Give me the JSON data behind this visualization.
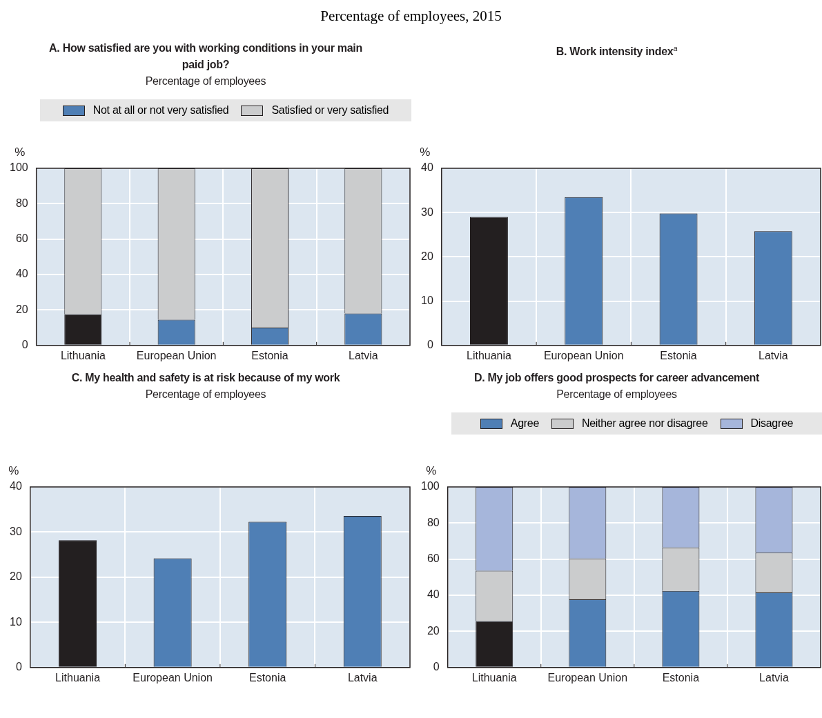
{
  "chart_data": [
    {
      "type": "other",
      "title": "Percentage of employees, 2015"
    },
    {
      "type": "bar",
      "title": "A. How satisfied are you with working conditions in your main paid job?",
      "subtitle": "Percentage of employees",
      "ylabel": "%",
      "categories": [
        "Lithuania",
        "European Union",
        "Estonia",
        "Latvia"
      ],
      "stacked": true,
      "legend": "top",
      "grid": true,
      "ylim": [
        0,
        100
      ],
      "yticks": [
        0,
        20,
        40,
        60,
        80,
        100
      ],
      "series": [
        {
          "name": "Not at all or not very satisfied",
          "color": "#4f7fb5",
          "colors": [
            "#231f20",
            "#4f7fb5",
            "#4f7fb5",
            "#4f7fb5"
          ],
          "values": [
            17.5,
            14.5,
            10,
            18
          ]
        },
        {
          "name": "Satisfied or very satisfied",
          "color": "#cbcccd",
          "values": [
            82.5,
            85.5,
            90,
            82
          ]
        }
      ]
    },
    {
      "type": "bar",
      "title": "B. Work intensity index$^{a}$",
      "ylabel": "%",
      "categories": [
        "Lithuania",
        "European Union",
        "Estonia",
        "Latvia"
      ],
      "grid": true,
      "ylim": [
        0,
        40
      ],
      "yticks": [
        0,
        10,
        20,
        30,
        40
      ],
      "series": [
        {
          "colors": [
            "#231f20",
            "#4f7fb5",
            "#4f7fb5",
            "#4f7fb5"
          ],
          "values": [
            29,
            33.5,
            29.8,
            25.8
          ]
        }
      ]
    },
    {
      "type": "bar",
      "title": "C. My health and safety is at risk because of my work",
      "subtitle": "Percentage of employees",
      "ylabel": "%",
      "categories": [
        "Lithuania",
        "European Union",
        "Estonia",
        "Latvia"
      ],
      "grid": true,
      "ylim": [
        0,
        40
      ],
      "yticks": [
        0,
        10,
        20,
        30,
        40
      ],
      "series": [
        {
          "colors": [
            "#231f20",
            "#4f7fb5",
            "#4f7fb5",
            "#4f7fb5"
          ],
          "values": [
            28.2,
            24.2,
            32.3,
            33.6
          ]
        }
      ]
    },
    {
      "type": "bar",
      "title": "D. My job offers good prospects for career advancement",
      "subtitle": "Percentage of employees",
      "ylabel": "%",
      "categories": [
        "Lithuania",
        "European Union",
        "Estonia",
        "Latvia"
      ],
      "stacked": true,
      "legend": "top",
      "grid": true,
      "ylim": [
        0,
        100
      ],
      "yticks": [
        0,
        20,
        40,
        60,
        80,
        100
      ],
      "series": [
        {
          "name": "Agree",
          "color": "#4f7fb5",
          "colors": [
            "#231f20",
            "#4f7fb5",
            "#4f7fb5",
            "#4f7fb5"
          ],
          "values": [
            25.7,
            37.7,
            42.4,
            41.6
          ]
        },
        {
          "name": "Neither agree nor disagree",
          "color": "#cbcccd",
          "values": [
            27.9,
            22.7,
            24.1,
            22
          ]
        },
        {
          "name": "Disagree",
          "color": "#a6b6db",
          "values": [
            46.4,
            39.6,
            33.5,
            36.4
          ]
        }
      ]
    }
  ]
}
